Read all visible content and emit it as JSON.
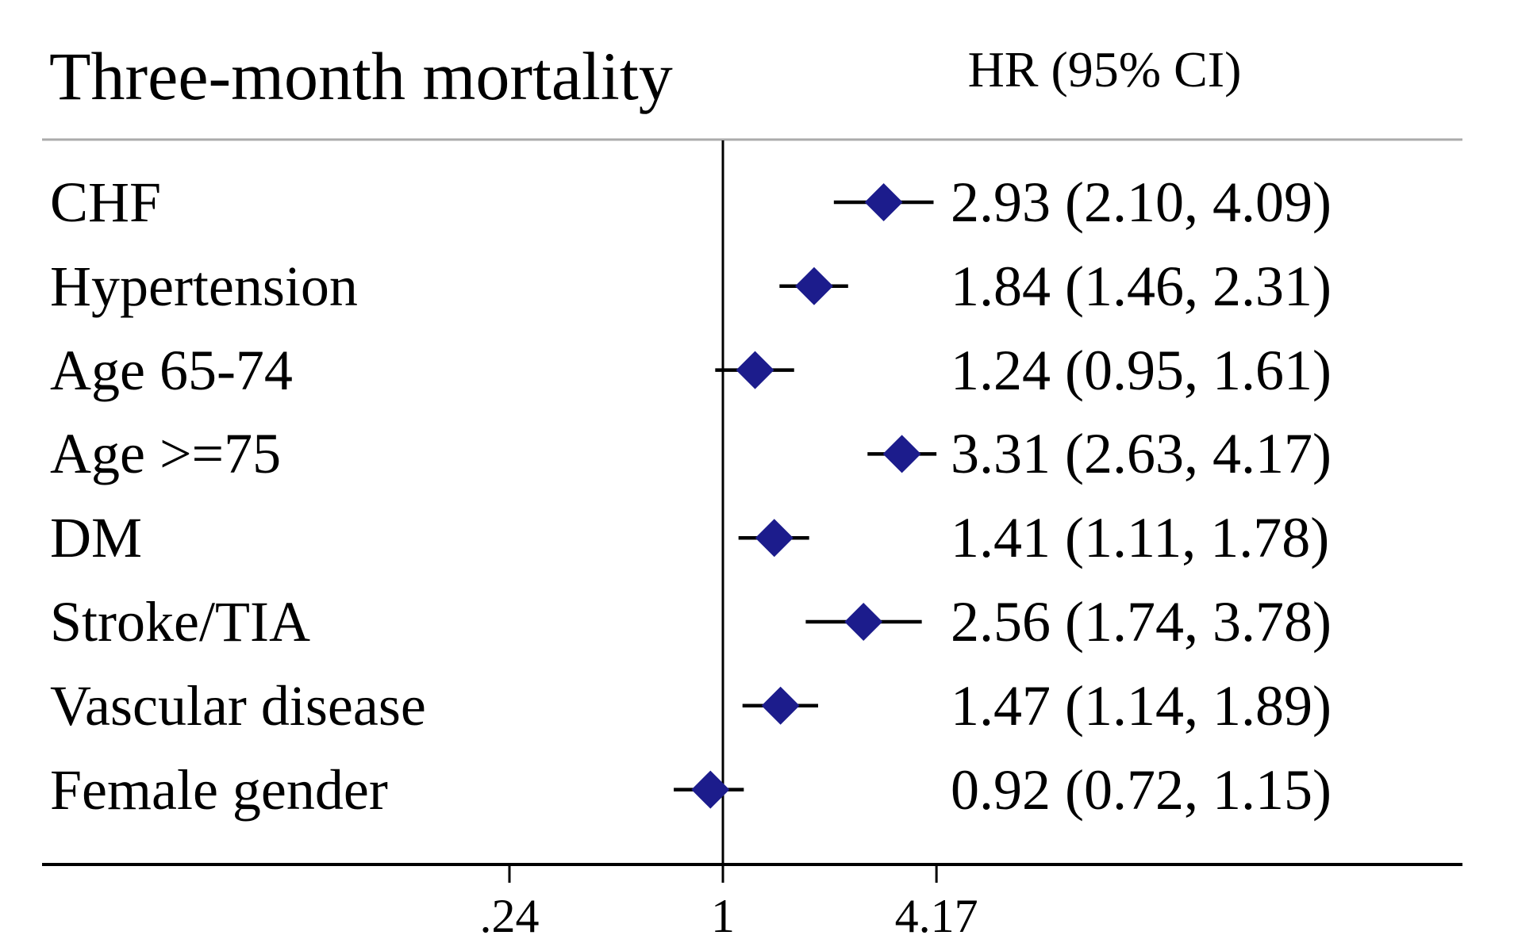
{
  "chart_data": {
    "type": "scatter",
    "subtype": "forest-plot",
    "title": "Three-month mortality",
    "column_header": "HR (95% CI)",
    "x_scale": "log",
    "reference_value": 1,
    "xticks": [
      {
        "value": 0.24,
        "label": ".24"
      },
      {
        "value": 1,
        "label": "1"
      },
      {
        "value": 4.17,
        "label": "4.17"
      }
    ],
    "rows": [
      {
        "label": "CHF",
        "hr": 2.93,
        "lo": 2.1,
        "hi": 4.09,
        "text": "2.93 (2.10, 4.09)"
      },
      {
        "label": "Hypertension",
        "hr": 1.84,
        "lo": 1.46,
        "hi": 2.31,
        "text": "1.84 (1.46, 2.31)"
      },
      {
        "label": "Age 65-74",
        "hr": 1.24,
        "lo": 0.95,
        "hi": 1.61,
        "text": "1.24 (0.95, 1.61)"
      },
      {
        "label": "Age >=75",
        "hr": 3.31,
        "lo": 2.63,
        "hi": 4.17,
        "text": "3.31 (2.63, 4.17)"
      },
      {
        "label": "DM",
        "hr": 1.41,
        "lo": 1.11,
        "hi": 1.78,
        "text": "1.41 (1.11, 1.78)"
      },
      {
        "label": "Stroke/TIA",
        "hr": 2.56,
        "lo": 1.74,
        "hi": 3.78,
        "text": "2.56 (1.74, 3.78)"
      },
      {
        "label": "Vascular disease",
        "hr": 1.47,
        "lo": 1.14,
        "hi": 1.89,
        "text": "1.47 (1.14, 1.89)"
      },
      {
        "label": "Female gender",
        "hr": 0.92,
        "lo": 0.72,
        "hi": 1.15,
        "text": "0.92 (0.72, 1.15)"
      }
    ],
    "colors": {
      "marker": "#1c1c8c",
      "axis": "#000000",
      "header_rule": "#ababab"
    },
    "legend": null,
    "grid": false
  }
}
